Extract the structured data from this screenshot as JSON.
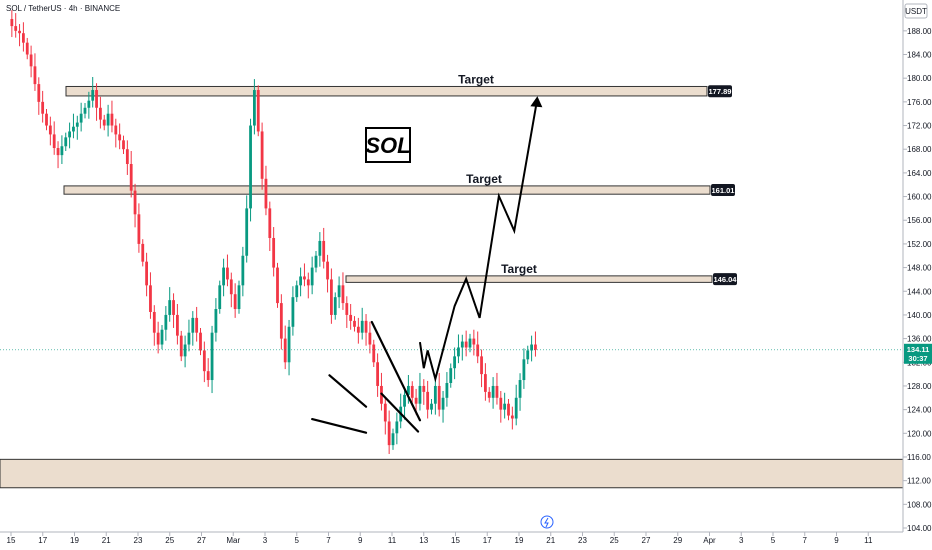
{
  "header": {
    "symbol_line": "SOL / TetherUS · 4h · BINANCE",
    "currency": "USDT"
  },
  "symbol_box": "SOL",
  "colors": {
    "up": "#089981",
    "down": "#f23645",
    "zone_fill": "#e7d7c6",
    "zone_border": "#333333",
    "last_price": "#089981"
  },
  "chart_data": {
    "type": "candlestick",
    "title": "",
    "ylim": [
      104,
      190
    ],
    "y_ticks": [
      "104.00",
      "108.00",
      "112.00",
      "116.00",
      "120.00",
      "124.00",
      "128.00",
      "132.00",
      "136.00",
      "140.00",
      "144.00",
      "148.00",
      "152.00",
      "156.00",
      "160.00",
      "164.00",
      "168.00",
      "172.00",
      "176.00",
      "180.00",
      "184.00",
      "188.00"
    ],
    "x_ticks": [
      "15",
      "17",
      "19",
      "21",
      "23",
      "25",
      "27",
      "Mar",
      "3",
      "5",
      "7",
      "9",
      "11",
      "13",
      "15",
      "17",
      "19",
      "21",
      "23",
      "25",
      "27",
      "29",
      "Apr",
      "3",
      "5",
      "7",
      "9",
      "11"
    ],
    "zones": [
      {
        "label": "Target",
        "low": 177,
        "high": 178.6,
        "price_label": "177.89"
      },
      {
        "label": "Target",
        "low": 160.4,
        "high": 161.8,
        "price_label": "161.01"
      },
      {
        "label": "Target",
        "low": 145.5,
        "high": 146.6,
        "price_label": "146.04"
      },
      {
        "label": "",
        "low": 110.8,
        "high": 115.6,
        "price_label": ""
      }
    ],
    "last_price": {
      "value": "134.11",
      "countdown": "30:37",
      "price": 134.11
    },
    "projection_path": [
      [
        10.7,
        135.4
      ],
      [
        10.8,
        131
      ],
      [
        10.9,
        134
      ],
      [
        11.1,
        129.2
      ],
      [
        11.6,
        141.5
      ],
      [
        11.9,
        146.1
      ],
      [
        12.25,
        139.5
      ],
      [
        12.75,
        160.1
      ],
      [
        13.15,
        154.2
      ],
      [
        13.75,
        176.6
      ]
    ],
    "projection_arrowhead": [
      13.65,
      177.1
    ],
    "pattern_lines": [
      {
        "from": [
          7.9,
          122.4
        ],
        "to": [
          9.3,
          120.1
        ]
      },
      {
        "from": [
          8.35,
          129.8
        ],
        "to": [
          9.3,
          124.5
        ]
      },
      {
        "from": [
          9.45,
          138.8
        ],
        "to": [
          10.7,
          122.2
        ]
      },
      {
        "from": [
          9.7,
          126.7
        ],
        "to": [
          10.65,
          120.3
        ]
      }
    ],
    "candles_sampled": [
      [
        0.0,
        190.0
      ],
      [
        0.1,
        188.8
      ],
      [
        0.2,
        188.0
      ],
      [
        0.3,
        187.6
      ],
      [
        0.4,
        186.0
      ],
      [
        0.5,
        184.0
      ],
      [
        0.6,
        182.0
      ],
      [
        0.7,
        179.0
      ],
      [
        0.8,
        176.0
      ],
      [
        0.9,
        174.0
      ],
      [
        1.0,
        172.0
      ],
      [
        1.1,
        170.5
      ],
      [
        1.2,
        168.2
      ],
      [
        1.3,
        167.0
      ],
      [
        1.4,
        168.5
      ],
      [
        1.5,
        170.0
      ],
      [
        1.6,
        171.0
      ],
      [
        1.7,
        171.8
      ],
      [
        1.8,
        172.5
      ],
      [
        1.9,
        174.0
      ],
      [
        2.0,
        175.0
      ],
      [
        2.1,
        176.2
      ],
      [
        2.2,
        178.0
      ],
      [
        2.3,
        175.0
      ],
      [
        2.4,
        173.0
      ],
      [
        2.5,
        172.0
      ],
      [
        2.6,
        174.0
      ],
      [
        2.7,
        172.0
      ],
      [
        2.8,
        170.5
      ],
      [
        2.9,
        169.5
      ],
      [
        3.0,
        168.0
      ],
      [
        3.1,
        165.5
      ],
      [
        3.2,
        161.0
      ],
      [
        3.3,
        157.0
      ],
      [
        3.4,
        152.0
      ],
      [
        3.5,
        149.0
      ],
      [
        3.6,
        145.0
      ],
      [
        3.7,
        140.5
      ],
      [
        3.8,
        137.0
      ],
      [
        3.9,
        135.0
      ],
      [
        4.0,
        137.5
      ],
      [
        4.1,
        140.0
      ],
      [
        4.2,
        142.5
      ],
      [
        4.3,
        140.0
      ],
      [
        4.4,
        136.5
      ],
      [
        4.5,
        133.0
      ],
      [
        4.6,
        135.0
      ],
      [
        4.7,
        137.0
      ],
      [
        4.8,
        139.5
      ],
      [
        4.9,
        137.0
      ],
      [
        5.0,
        134.0
      ],
      [
        5.1,
        130.5
      ],
      [
        5.2,
        129.0
      ],
      [
        5.3,
        137.0
      ],
      [
        5.4,
        141.0
      ],
      [
        5.5,
        145.0
      ],
      [
        5.6,
        148.0
      ],
      [
        5.7,
        146.0
      ],
      [
        5.8,
        143.5
      ],
      [
        5.9,
        141.0
      ],
      [
        6.0,
        145.0
      ],
      [
        6.1,
        150.0
      ],
      [
        6.2,
        158.0
      ],
      [
        6.3,
        172.0
      ],
      [
        6.4,
        178.0
      ],
      [
        6.5,
        171.0
      ],
      [
        6.6,
        163.0
      ],
      [
        6.7,
        158.0
      ],
      [
        6.8,
        153.0
      ],
      [
        6.9,
        148.0
      ],
      [
        7.0,
        142.0
      ],
      [
        7.1,
        136.0
      ],
      [
        7.2,
        132.0
      ],
      [
        7.3,
        138.0
      ],
      [
        7.4,
        143.0
      ],
      [
        7.5,
        145.0
      ],
      [
        7.6,
        146.5
      ],
      [
        7.7,
        146.0
      ],
      [
        7.8,
        145.0
      ],
      [
        7.9,
        148.0
      ],
      [
        8.0,
        150.0
      ],
      [
        8.1,
        152.5
      ],
      [
        8.2,
        149.0
      ],
      [
        8.3,
        146.0
      ],
      [
        8.4,
        140.0
      ],
      [
        8.5,
        143.0
      ],
      [
        8.6,
        145.0
      ],
      [
        8.7,
        142.0
      ],
      [
        8.8,
        140.0
      ],
      [
        8.9,
        139.0
      ],
      [
        9.0,
        138.0
      ],
      [
        9.1,
        137.0
      ],
      [
        9.2,
        139.0
      ],
      [
        9.3,
        137.0
      ],
      [
        9.4,
        135.0
      ],
      [
        9.5,
        132.0
      ],
      [
        9.6,
        128.0
      ],
      [
        9.7,
        125.0
      ],
      [
        9.8,
        122.0
      ],
      [
        9.9,
        118.0
      ],
      [
        10.0,
        120.0
      ],
      [
        10.1,
        122.0
      ],
      [
        10.2,
        124.5
      ],
      [
        10.3,
        126.5
      ],
      [
        10.4,
        128.0
      ],
      [
        10.5,
        126.0
      ],
      [
        10.6,
        125.0
      ],
      [
        10.7,
        128.0
      ],
      [
        10.8,
        127.0
      ],
      [
        10.9,
        124.0
      ],
      [
        11.0,
        125.0
      ],
      [
        11.1,
        128.0
      ],
      [
        11.2,
        124.0
      ],
      [
        11.3,
        126.0
      ],
      [
        11.4,
        128.5
      ],
      [
        11.5,
        131.0
      ],
      [
        11.6,
        133.0
      ],
      [
        11.7,
        134.5
      ],
      [
        11.8,
        135.5
      ],
      [
        11.9,
        134.5
      ],
      [
        12.0,
        136.0
      ],
      [
        12.1,
        135.0
      ],
      [
        12.2,
        133.0
      ],
      [
        12.3,
        130.0
      ],
      [
        12.4,
        127.0
      ],
      [
        12.5,
        126.0
      ],
      [
        12.6,
        128.0
      ],
      [
        12.7,
        126.0
      ],
      [
        12.8,
        124.0
      ],
      [
        12.9,
        125.0
      ],
      [
        13.0,
        123.0
      ],
      [
        13.1,
        122.5
      ],
      [
        13.2,
        126.0
      ],
      [
        13.3,
        129.0
      ],
      [
        13.4,
        132.5
      ],
      [
        13.5,
        134.0
      ],
      [
        13.6,
        135.0
      ],
      [
        13.7,
        134.11
      ]
    ]
  }
}
